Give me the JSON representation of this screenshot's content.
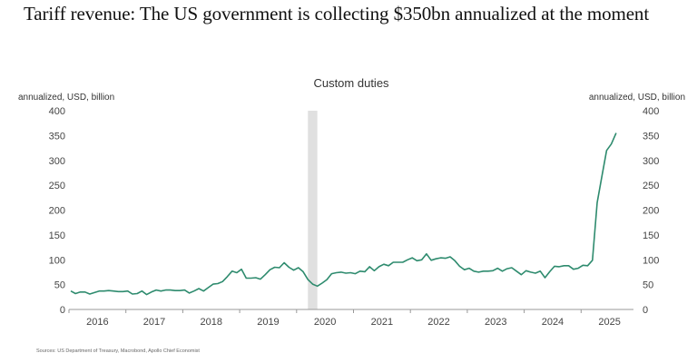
{
  "title": "Tariff revenue: The US government is collecting $350bn annualized at the moment",
  "chart_data": {
    "type": "line",
    "title": "Custom duties",
    "ylabel_left": "annualized, USD, billion",
    "ylabel_right": "annualized, USD, billion",
    "ylim": [
      0,
      400
    ],
    "yticks": [
      "0",
      "50",
      "100",
      "150",
      "200",
      "250",
      "300",
      "350",
      "400"
    ],
    "xticks": [
      "2016",
      "2017",
      "2018",
      "2019",
      "2020",
      "2021",
      "2022",
      "2023",
      "2024",
      "2025"
    ],
    "x_start": "2016-01",
    "x_frequency": "monthly",
    "shaded_period": [
      "2020-03",
      "2020-04"
    ],
    "grid": false,
    "line_color": "#2e8b6e",
    "shade_color": "#e0e0e0",
    "series": [
      {
        "values": [
          37,
          32,
          35,
          35,
          31,
          34,
          37,
          37,
          38,
          37,
          36,
          36,
          37,
          31,
          32,
          37,
          30,
          35,
          39,
          37,
          39,
          39,
          38,
          38,
          39,
          33,
          37,
          42,
          37,
          44,
          51,
          52,
          56,
          66,
          77,
          74,
          81,
          63,
          63,
          64,
          61,
          70,
          80,
          85,
          84,
          94,
          85,
          79,
          84,
          76,
          60,
          51,
          47,
          53,
          60,
          72,
          74,
          75,
          73,
          74,
          72,
          77,
          76,
          86,
          78,
          86,
          91,
          88,
          95,
          95,
          95,
          100,
          104,
          98,
          100,
          112,
          99,
          102,
          104,
          103,
          106,
          98,
          87,
          80,
          83,
          77,
          75,
          77,
          77,
          78,
          83,
          77,
          82,
          84,
          77,
          70,
          78,
          75,
          73,
          77,
          64,
          76,
          87,
          86,
          88,
          88,
          81,
          83,
          89,
          88,
          99,
          215,
          268,
          320,
          333,
          355
        ]
      }
    ],
    "source": "Sources: US Department of Treasury, Macrobond, Apollo Chief Economist"
  }
}
